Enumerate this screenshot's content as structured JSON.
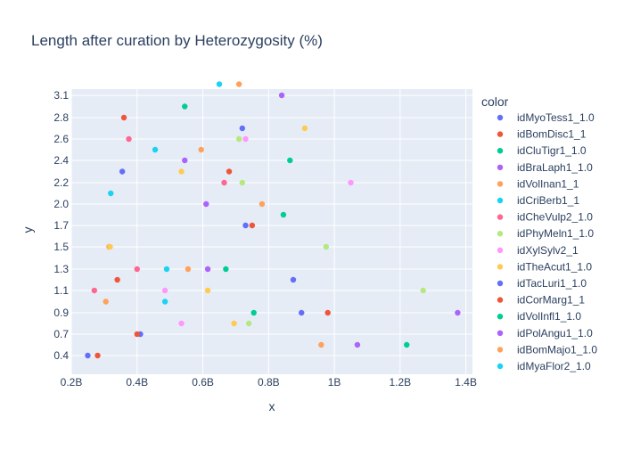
{
  "chart_data": {
    "type": "scatter",
    "title": "Length after curation by Heterozygosity (%)",
    "xlabel": "x",
    "ylabel": "y",
    "legend_title": "color",
    "legend_position": "right",
    "grid": true,
    "xlim": [
      0.2,
      1.42
    ],
    "ylim": [
      0.25,
      3.25
    ],
    "x_ticks": [
      {
        "value": 0.2,
        "label": "0.2B"
      },
      {
        "value": 0.4,
        "label": "0.4B"
      },
      {
        "value": 0.6,
        "label": "0.6B"
      },
      {
        "value": 0.8,
        "label": "0.8B"
      },
      {
        "value": 1.0,
        "label": "1B"
      },
      {
        "value": 1.2,
        "label": "1.2B"
      },
      {
        "value": 1.4,
        "label": "1.4B"
      }
    ],
    "y_ticks": [
      {
        "value": 0.4,
        "label": "0.4"
      },
      {
        "value": 0.7,
        "label": "0.7"
      },
      {
        "value": 0.9,
        "label": "0.9"
      },
      {
        "value": 1.1,
        "label": "1.1"
      },
      {
        "value": 1.3,
        "label": "1.3"
      },
      {
        "value": 1.5,
        "label": "1.5"
      },
      {
        "value": 1.7,
        "label": "1.7"
      },
      {
        "value": 2.0,
        "label": "2.0"
      },
      {
        "value": 2.2,
        "label": "2.2"
      },
      {
        "value": 2.4,
        "label": "2.4"
      },
      {
        "value": 2.6,
        "label": "2.6"
      },
      {
        "value": 2.8,
        "label": "2.8"
      },
      {
        "value": 3.1,
        "label": "3.1"
      }
    ],
    "legend": [
      {
        "name": "idMyoTess1_1.0",
        "color": "#636efa"
      },
      {
        "name": "idBomDisc1_1",
        "color": "#EF553B"
      },
      {
        "name": "idCluTigr1_1.0",
        "color": "#00cc96"
      },
      {
        "name": "idBraLaph1_1.0",
        "color": "#ab63fa"
      },
      {
        "name": "idVolInan1_1",
        "color": "#FFA15A"
      },
      {
        "name": "idCriBerb1_1",
        "color": "#19d3f3"
      },
      {
        "name": "idCheVulp2_1.0",
        "color": "#FF6692"
      },
      {
        "name": "idPhyMeln1_1.0",
        "color": "#B6E880"
      },
      {
        "name": "idXylSylv2_1",
        "color": "#FF97FF"
      },
      {
        "name": "idTheAcut1_1.0",
        "color": "#FECB52"
      },
      {
        "name": "idTacLuri1_1.0",
        "color": "#636efa"
      },
      {
        "name": "idCorMarg1_1",
        "color": "#EF553B"
      },
      {
        "name": "idVolInfl1_1.0",
        "color": "#00cc96"
      },
      {
        "name": "idPolAngu1_1.0",
        "color": "#ab63fa"
      },
      {
        "name": "idBomMajo1_1.0",
        "color": "#FFA15A"
      },
      {
        "name": "idMyaFlor2_1.0",
        "color": "#19d3f3"
      }
    ],
    "points": [
      {
        "x": 0.25,
        "y": 0.4,
        "color": "#636efa"
      },
      {
        "x": 0.28,
        "y": 0.4,
        "color": "#EF553B"
      },
      {
        "x": 0.41,
        "y": 0.7,
        "color": "#636efa"
      },
      {
        "x": 0.4,
        "y": 0.7,
        "color": "#EF553B"
      },
      {
        "x": 0.535,
        "y": 0.8,
        "color": "#FF97FF"
      },
      {
        "x": 0.695,
        "y": 0.8,
        "color": "#FECB52"
      },
      {
        "x": 0.74,
        "y": 0.8,
        "color": "#B6E880"
      },
      {
        "x": 0.96,
        "y": 0.55,
        "color": "#FFA15A"
      },
      {
        "x": 1.07,
        "y": 0.55,
        "color": "#ab63fa"
      },
      {
        "x": 1.22,
        "y": 0.55,
        "color": "#00cc96"
      },
      {
        "x": 0.755,
        "y": 0.9,
        "color": "#00cc96"
      },
      {
        "x": 0.9,
        "y": 0.9,
        "color": "#636efa"
      },
      {
        "x": 0.98,
        "y": 0.9,
        "color": "#EF553B"
      },
      {
        "x": 1.375,
        "y": 0.9,
        "color": "#ab63fa"
      },
      {
        "x": 0.305,
        "y": 1.0,
        "color": "#FFA15A"
      },
      {
        "x": 0.485,
        "y": 1.0,
        "color": "#19d3f3"
      },
      {
        "x": 0.27,
        "y": 1.1,
        "color": "#FF6692"
      },
      {
        "x": 0.485,
        "y": 1.1,
        "color": "#FF97FF"
      },
      {
        "x": 0.615,
        "y": 1.1,
        "color": "#FECB52"
      },
      {
        "x": 1.27,
        "y": 1.1,
        "color": "#B6E880"
      },
      {
        "x": 0.34,
        "y": 1.2,
        "color": "#EF553B"
      },
      {
        "x": 0.875,
        "y": 1.2,
        "color": "#636efa"
      },
      {
        "x": 0.4,
        "y": 1.3,
        "color": "#FF6692"
      },
      {
        "x": 0.49,
        "y": 1.3,
        "color": "#19d3f3"
      },
      {
        "x": 0.555,
        "y": 1.3,
        "color": "#FFA15A"
      },
      {
        "x": 0.615,
        "y": 1.3,
        "color": "#ab63fa"
      },
      {
        "x": 0.67,
        "y": 1.3,
        "color": "#00cc96"
      },
      {
        "x": 0.315,
        "y": 1.5,
        "color": "#FFA15A"
      },
      {
        "x": 0.318,
        "y": 1.5,
        "color": "#FECB52"
      },
      {
        "x": 0.975,
        "y": 1.5,
        "color": "#B6E880"
      },
      {
        "x": 0.73,
        "y": 1.7,
        "color": "#636efa"
      },
      {
        "x": 0.75,
        "y": 1.7,
        "color": "#EF553B"
      },
      {
        "x": 0.845,
        "y": 1.85,
        "color": "#00cc96"
      },
      {
        "x": 0.61,
        "y": 2.0,
        "color": "#ab63fa"
      },
      {
        "x": 0.78,
        "y": 2.0,
        "color": "#FFA15A"
      },
      {
        "x": 0.32,
        "y": 2.1,
        "color": "#19d3f3"
      },
      {
        "x": 0.665,
        "y": 2.2,
        "color": "#FF6692"
      },
      {
        "x": 0.72,
        "y": 2.2,
        "color": "#B6E880"
      },
      {
        "x": 1.05,
        "y": 2.2,
        "color": "#FF97FF"
      },
      {
        "x": 0.535,
        "y": 2.3,
        "color": "#FECB52"
      },
      {
        "x": 0.355,
        "y": 2.3,
        "color": "#636efa"
      },
      {
        "x": 0.68,
        "y": 2.3,
        "color": "#EF553B"
      },
      {
        "x": 0.545,
        "y": 2.4,
        "color": "#ab63fa"
      },
      {
        "x": 0.865,
        "y": 2.4,
        "color": "#00cc96"
      },
      {
        "x": 0.455,
        "y": 2.5,
        "color": "#19d3f3"
      },
      {
        "x": 0.595,
        "y": 2.5,
        "color": "#FFA15A"
      },
      {
        "x": 0.375,
        "y": 2.6,
        "color": "#FF6692"
      },
      {
        "x": 0.71,
        "y": 2.6,
        "color": "#B6E880"
      },
      {
        "x": 0.73,
        "y": 2.6,
        "color": "#FF97FF"
      },
      {
        "x": 0.72,
        "y": 2.7,
        "color": "#636efa"
      },
      {
        "x": 0.91,
        "y": 2.7,
        "color": "#FECB52"
      },
      {
        "x": 0.36,
        "y": 2.8,
        "color": "#EF553B"
      },
      {
        "x": 0.545,
        "y": 2.95,
        "color": "#00cc96"
      },
      {
        "x": 0.84,
        "y": 3.1,
        "color": "#ab63fa"
      },
      {
        "x": 0.65,
        "y": 3.25,
        "color": "#19d3f3"
      },
      {
        "x": 0.71,
        "y": 3.25,
        "color": "#FFA15A"
      }
    ]
  },
  "colors": {
    "plot_background": "#E5ECF6",
    "grid": "#ffffff",
    "text": "#2a3f5f"
  }
}
